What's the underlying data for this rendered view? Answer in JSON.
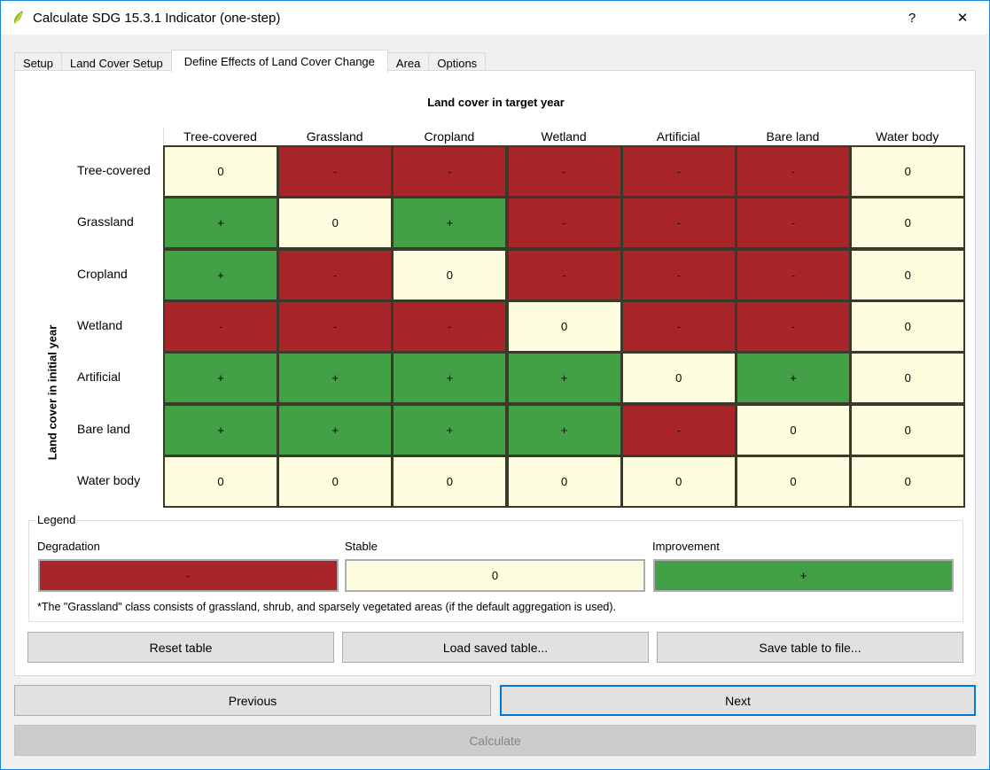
{
  "window": {
    "title": "Calculate SDG 15.3.1 Indicator (one-step)",
    "help": "?",
    "close": "✕"
  },
  "tabs": [
    "Setup",
    "Land Cover Setup",
    "Define Effects of Land Cover Change",
    "Area",
    "Options"
  ],
  "matrix": {
    "target_label": "Land cover in target year",
    "initial_label": "Land cover in initial year",
    "classes": [
      "Tree-covered",
      "Grassland",
      "Cropland",
      "Wetland",
      "Artificial",
      "Bare land",
      "Water body"
    ],
    "rows": [
      [
        "0",
        "-",
        "-",
        "-",
        "-",
        "-",
        "0"
      ],
      [
        "+",
        "0",
        "+",
        "-",
        "-",
        "-",
        "0"
      ],
      [
        "+",
        "-",
        "0",
        "-",
        "-",
        "-",
        "0"
      ],
      [
        "-",
        "-",
        "-",
        "0",
        "-",
        "-",
        "0"
      ],
      [
        "+",
        "+",
        "+",
        "+",
        "0",
        "+",
        "0"
      ],
      [
        "+",
        "+",
        "+",
        "+",
        "-",
        "0",
        "0"
      ],
      [
        "0",
        "0",
        "0",
        "0",
        "0",
        "0",
        "0"
      ]
    ]
  },
  "colors": {
    "degradation": "#a8262a",
    "stable": "#fffde0",
    "improvement": "#43a047",
    "accent": "#0078d7"
  },
  "legend": {
    "title": "Legend",
    "items": [
      {
        "label": "Degradation",
        "symbol": "-"
      },
      {
        "label": "Stable",
        "symbol": "0"
      },
      {
        "label": "Improvement",
        "symbol": "+"
      }
    ],
    "note": "*The \"Grassland\" class consists of grassland, shrub, and sparsely vegetated areas (if the default aggregation is used)."
  },
  "buttons": {
    "reset": "Reset table",
    "load": "Load saved table...",
    "save": "Save table to file...",
    "previous": "Previous",
    "next": "Next",
    "calculate": "Calculate"
  }
}
